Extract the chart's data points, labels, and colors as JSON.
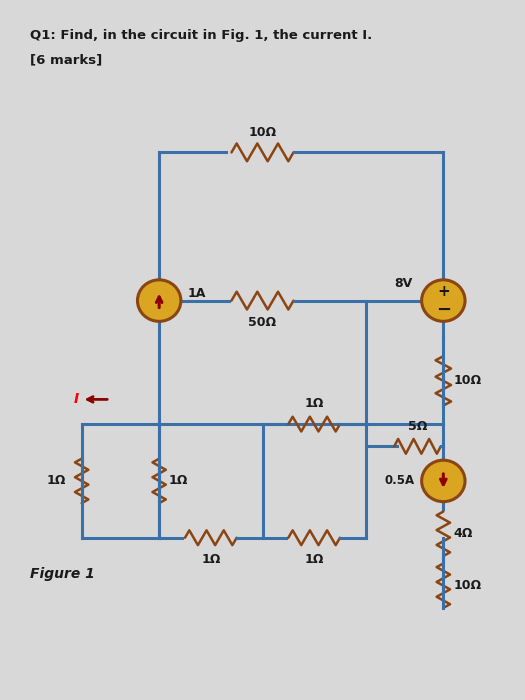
{
  "title": "Q1: Find, in the circuit in Fig. 1, the current I.",
  "subtitle": "[6 marks]",
  "figure_label": "Figure 1",
  "bg_color": "#d8d8d8",
  "wire_color": "#3a6fa8",
  "wire_lw": 2.2,
  "resistor_color": "#8B4513",
  "source_fill": "#DAA520",
  "source_edge": "#8B4513",
  "text_color": "#1a1a1a",
  "arrow_color": "#8B0000"
}
